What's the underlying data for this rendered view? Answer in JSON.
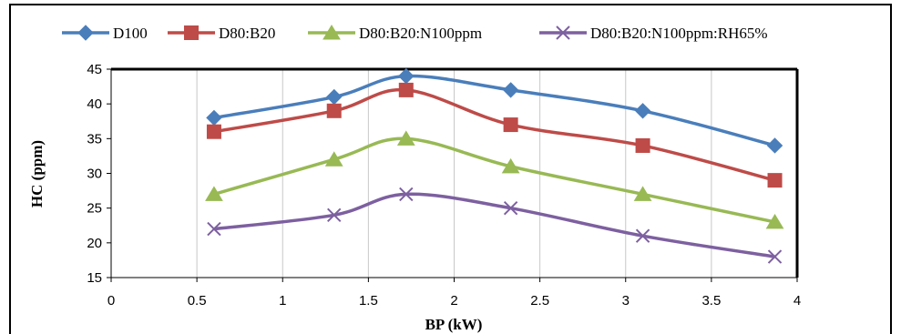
{
  "chart_data": {
    "type": "line",
    "xlabel": "BP (kW)",
    "ylabel": "HC  (ppm)",
    "xlim": [
      0,
      4
    ],
    "ylim": [
      15,
      45
    ],
    "xticks": [
      "0",
      "0.5",
      "1",
      "1.5",
      "2",
      "2.5",
      "3",
      "3.5",
      "4"
    ],
    "yticks": [
      "15",
      "20",
      "25",
      "30",
      "35",
      "40",
      "45"
    ],
    "grid": "vertical",
    "legend_position": "top",
    "series": [
      {
        "name": "D100",
        "color": "#4a7ebb",
        "marker": "diamond",
        "x": [
          0.6,
          1.3,
          1.72,
          2.33,
          3.1,
          3.87
        ],
        "y": [
          38,
          41,
          44,
          42,
          39,
          34
        ]
      },
      {
        "name": "D80:B20",
        "color": "#be4b48",
        "marker": "square",
        "x": [
          0.6,
          1.3,
          1.72,
          2.33,
          3.1,
          3.87
        ],
        "y": [
          36,
          39,
          42,
          37,
          34,
          29
        ]
      },
      {
        "name": "D80:B20:N100ppm",
        "color": "#98b954",
        "marker": "triangle",
        "x": [
          0.6,
          1.3,
          1.72,
          2.33,
          3.1,
          3.87
        ],
        "y": [
          27,
          32,
          35,
          31,
          27,
          23
        ]
      },
      {
        "name": "D80:B20:N100ppm:RH65%",
        "color": "#7d60a0",
        "marker": "x",
        "x": [
          0.6,
          1.3,
          1.72,
          2.33,
          3.1,
          3.87
        ],
        "y": [
          22,
          24,
          27,
          25,
          21,
          18
        ]
      }
    ]
  }
}
